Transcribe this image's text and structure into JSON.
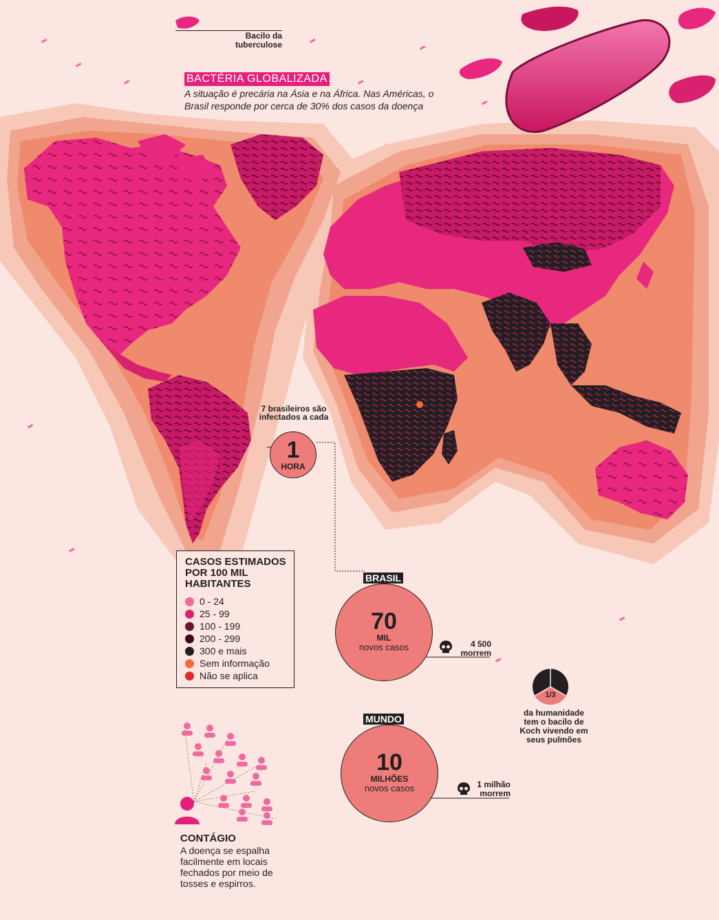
{
  "title": "BACTÉRIA GLOBALIZADA",
  "subtitle": "A situação é precária na Ásia e na África. Nas Américas, o Brasil responde por cerca de 30% dos casos da doença",
  "bacillus_label": "Bacilo da tuberculose",
  "legend": {
    "title": "CASOS ESTIMADOS POR 100 MIL HABITANTES",
    "items": [
      {
        "label": "0 - 24",
        "color": "#f06aa0"
      },
      {
        "label": "25 - 99",
        "color": "#d9226f"
      },
      {
        "label": "100 - 199",
        "color": "#6e1438"
      },
      {
        "label": "200 - 299",
        "color": "#3b0b1e"
      },
      {
        "label": "300 e mais",
        "color": "#231f20"
      },
      {
        "label": "Sem informação",
        "color": "#f26b3a"
      },
      {
        "label": "Não se aplica",
        "color": "#e02a2a"
      }
    ]
  },
  "brazil_rate": {
    "intro": "7 brasileiros são infectados a cada",
    "number": "1",
    "unit": "HORA"
  },
  "brasil": {
    "tag": "BRASIL",
    "number": "70",
    "unit": "MIL",
    "caption": "novos casos",
    "deaths_number": "4 500",
    "deaths_label": "morrem"
  },
  "mundo": {
    "tag": "MUNDO",
    "number": "10",
    "unit": "MILHÕES",
    "caption": "novos casos",
    "deaths_number": "1 milhão",
    "deaths_label": "morrem"
  },
  "humanity": {
    "fraction": "1/3",
    "text": "da humanidade tem o bacilo de Koch vivendo em seus pulmões"
  },
  "contagio": {
    "title": "CONTÁGIO",
    "text": "A doença se espalha facilmente em locais fechados por meio de tosses e espirros."
  },
  "colors": {
    "background": "#fbe6e1",
    "halo_light": "#f7c8b8",
    "halo_mid": "#f2a58e",
    "halo_dark": "#ef8a6c",
    "land_low": "#e8287e",
    "land_high": "#231f20",
    "accent": "#ee7c7a"
  },
  "icons": [
    "bacillus-icon",
    "skull-icon",
    "person-icon"
  ]
}
